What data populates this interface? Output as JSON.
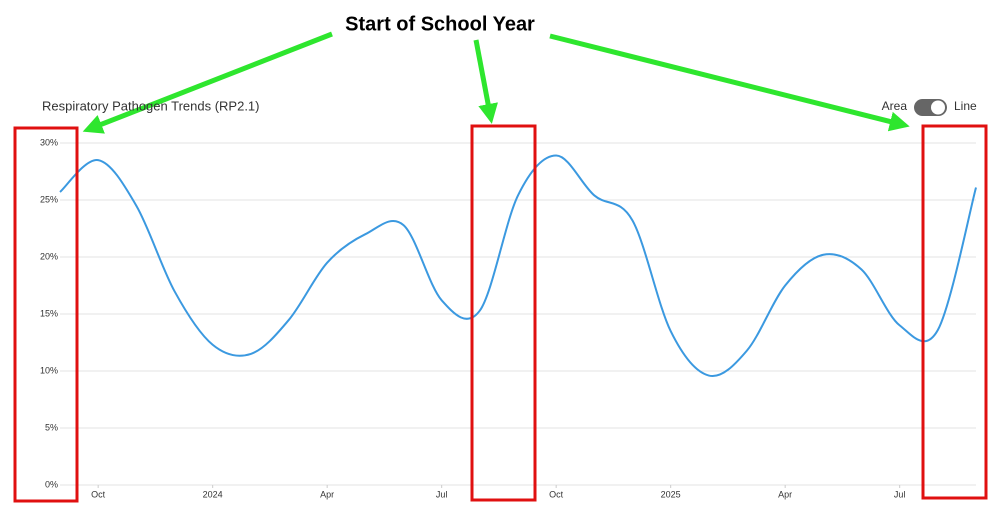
{
  "chart_data": {
    "type": "line",
    "title": "Respiratory Pathogen Trends (RP2.1)",
    "annotation": "Start of School Year",
    "toggle": {
      "left": "Area",
      "right": "Line"
    },
    "x": [
      "2023-09",
      "2023-10",
      "2023-11",
      "2023-12",
      "2024-01",
      "2024-02",
      "2024-03",
      "2024-04",
      "2024-05",
      "2024-06",
      "2024-07",
      "2024-08",
      "2024-09",
      "2024-10",
      "2024-11",
      "2024-12",
      "2025-01",
      "2025-02",
      "2025-03",
      "2025-04",
      "2025-05",
      "2025-06",
      "2025-07",
      "2025-08",
      "2025-09"
    ],
    "series": [
      {
        "color": "#3b99e0",
        "values": [
          25.7,
          28.5,
          24.5,
          17.0,
          12.3,
          11.5,
          14.5,
          19.5,
          22.0,
          22.8,
          16.2,
          15.3,
          25.4,
          28.9,
          25.4,
          23.2,
          13.5,
          9.6,
          11.8,
          17.5,
          20.2,
          18.9,
          14.0,
          13.6,
          26.1
        ]
      }
    ],
    "xlim": [
      "2023-09",
      "2025-09"
    ],
    "xticks": [
      {
        "value": "2023-10",
        "label": "Oct"
      },
      {
        "value": "2024-01",
        "label": "2024"
      },
      {
        "value": "2024-04",
        "label": "Apr"
      },
      {
        "value": "2024-07",
        "label": "Jul"
      },
      {
        "value": "2024-10",
        "label": "Oct"
      },
      {
        "value": "2025-01",
        "label": "2025"
      },
      {
        "value": "2025-04",
        "label": "Apr"
      },
      {
        "value": "2025-07",
        "label": "Jul"
      }
    ],
    "ylim": [
      0,
      30
    ],
    "yticks": [
      {
        "value": 0,
        "label": "0%"
      },
      {
        "value": 5,
        "label": "5%"
      },
      {
        "value": 10,
        "label": "10%"
      },
      {
        "value": 15,
        "label": "15%"
      },
      {
        "value": 20,
        "label": "20%"
      },
      {
        "value": 25,
        "label": "25%"
      },
      {
        "value": 30,
        "label": "30%"
      }
    ],
    "grid": true
  }
}
